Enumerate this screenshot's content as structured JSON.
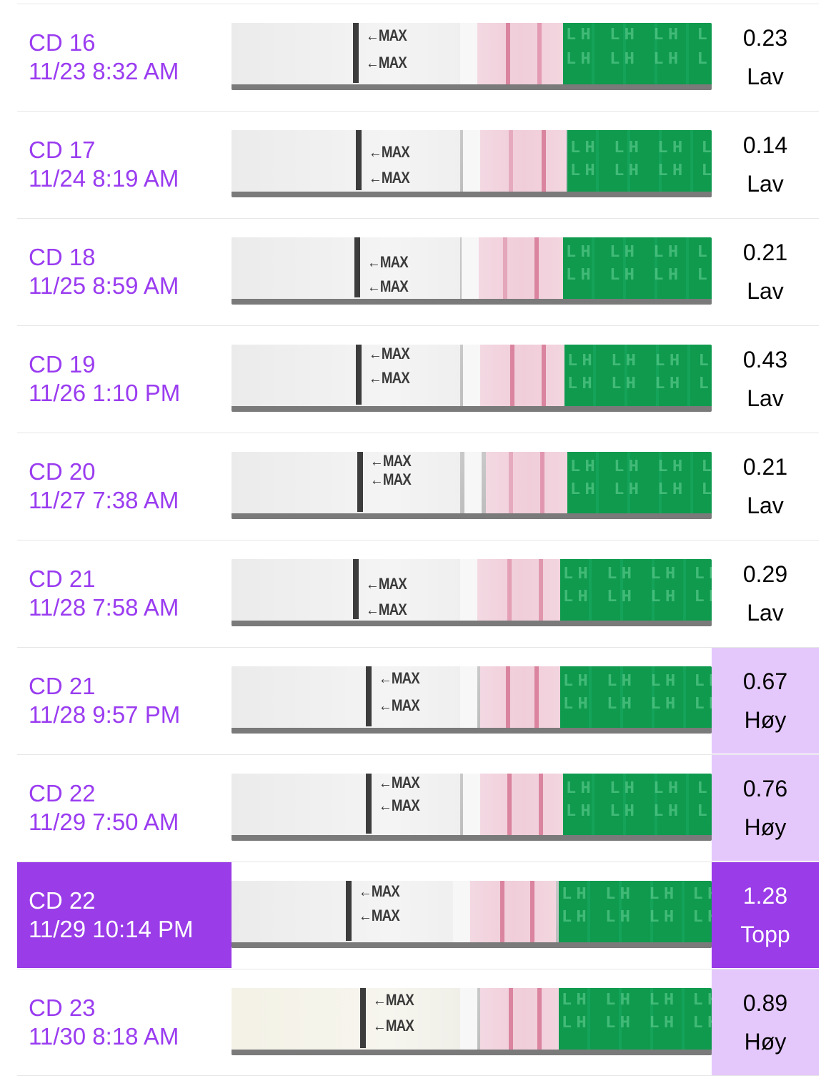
{
  "entries": [
    {
      "cd": "CD 16",
      "datetime": "11/23 8:32 AM",
      "value": "0.23",
      "level": "Lav",
      "state": "low"
    },
    {
      "cd": "CD 17",
      "datetime": "11/24 8:19 AM",
      "value": "0.14",
      "level": "Lav",
      "state": "low"
    },
    {
      "cd": "CD 18",
      "datetime": "11/25 8:59 AM",
      "value": "0.21",
      "level": "Lav",
      "state": "low"
    },
    {
      "cd": "CD 19",
      "datetime": "11/26 1:10 PM",
      "value": "0.43",
      "level": "Lav",
      "state": "low"
    },
    {
      "cd": "CD 20",
      "datetime": "11/27 7:38 AM",
      "value": "0.21",
      "level": "Lav",
      "state": "low"
    },
    {
      "cd": "CD 21",
      "datetime": "11/28 7:58 AM",
      "value": "0.29",
      "level": "Lav",
      "state": "low"
    },
    {
      "cd": "CD 21",
      "datetime": "11/28 9:57 PM",
      "value": "0.67",
      "level": "Høy",
      "state": "high"
    },
    {
      "cd": "CD 22",
      "datetime": "11/29 7:50 AM",
      "value": "0.76",
      "level": "Høy",
      "state": "high"
    },
    {
      "cd": "CD 22",
      "datetime": "11/29 10:14 PM",
      "value": "1.28",
      "level": "Topp",
      "state": "peak"
    },
    {
      "cd": "CD 23",
      "datetime": "11/30 8:18 AM",
      "value": "0.89",
      "level": "Høy",
      "state": "high"
    }
  ],
  "strip_labels": {
    "max": "←MAX",
    "lh": "LH LH LH LH LH"
  },
  "colors": {
    "accent": "#9a3ce8",
    "high_bg": "#e4c8fb",
    "strip_green": "#0f9a4e",
    "test_line": "#d57090"
  }
}
